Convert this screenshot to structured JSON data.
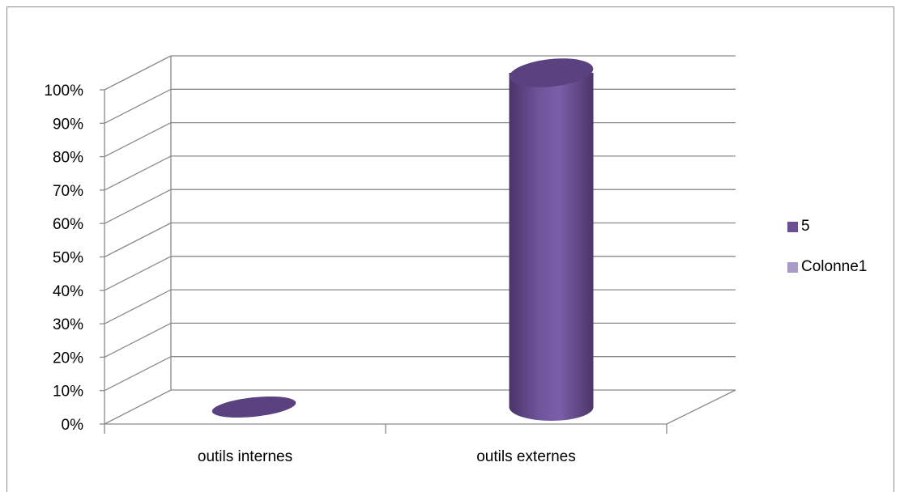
{
  "chart_data": {
    "type": "bar",
    "style": "3d-cylinder",
    "categories": [
      "outils internes",
      "outils externes"
    ],
    "series": [
      {
        "name": "5",
        "color": "#6B4F93",
        "values": [
          0.0,
          1.0
        ]
      },
      {
        "name": "Colonne1",
        "color": "#A99BC7",
        "values": [
          0,
          0
        ]
      }
    ],
    "y_ticks": [
      "0%",
      "10%",
      "20%",
      "30%",
      "40%",
      "50%",
      "60%",
      "70%",
      "80%",
      "90%",
      "100%"
    ],
    "ylim": [
      0,
      1
    ],
    "grid": true,
    "legend_position": "right"
  }
}
